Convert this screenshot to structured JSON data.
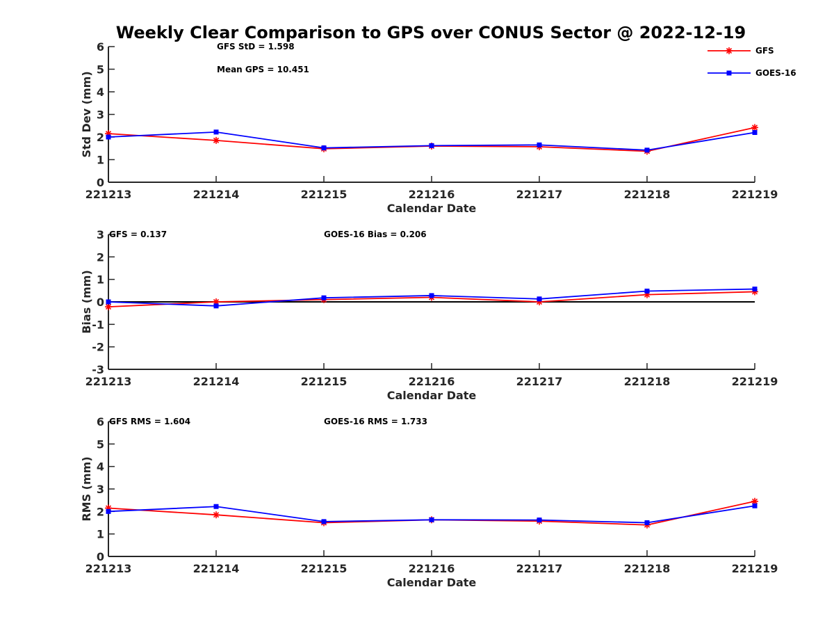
{
  "title": "Weekly Clear Comparison to GPS over CONUS Sector @ 2022-12-19",
  "legend": {
    "placement": "top-right",
    "items": [
      {
        "name": "GFS",
        "color": "#ff0000",
        "marker": "asterisk"
      },
      {
        "name": "GOES-16",
        "color": "#0000ff",
        "marker": "square"
      }
    ]
  },
  "chart_data": [
    {
      "type": "line",
      "xlabel": "Calendar Date",
      "ylabel": "Std Dev (mm)",
      "categories": [
        "221213",
        "221214",
        "221215",
        "221216",
        "221217",
        "221218",
        "221219"
      ],
      "ylim": [
        0,
        6
      ],
      "yticks": [
        0,
        1,
        2,
        3,
        4,
        5,
        6
      ],
      "zero_line": false,
      "annotations": [
        "GFS StD = 1.598",
        "Mean GPS = 10.451"
      ],
      "series": [
        {
          "name": "GFS",
          "color": "#ff0000",
          "marker": "asterisk",
          "values": [
            2.15,
            1.85,
            1.48,
            1.6,
            1.57,
            1.37,
            2.42
          ]
        },
        {
          "name": "GOES-16",
          "color": "#0000ff",
          "marker": "square",
          "values": [
            2.0,
            2.22,
            1.52,
            1.62,
            1.65,
            1.42,
            2.2
          ]
        }
      ]
    },
    {
      "type": "line",
      "xlabel": "Calendar Date",
      "ylabel": "Bias (mm)",
      "categories": [
        "221213",
        "221214",
        "221215",
        "221216",
        "221217",
        "221218",
        "221219"
      ],
      "ylim": [
        -3,
        3
      ],
      "yticks": [
        -3,
        -2,
        -1,
        0,
        1,
        2,
        3
      ],
      "zero_line": true,
      "annotations": [
        "GFS = 0.137",
        "GOES-16 Bias  = 0.206"
      ],
      "series": [
        {
          "name": "GFS",
          "color": "#ff0000",
          "marker": "asterisk",
          "values": [
            -0.22,
            0.0,
            0.1,
            0.2,
            0.0,
            0.32,
            0.45
          ]
        },
        {
          "name": "GOES-16",
          "color": "#0000ff",
          "marker": "square",
          "values": [
            0.0,
            -0.18,
            0.18,
            0.28,
            0.13,
            0.48,
            0.57
          ]
        }
      ]
    },
    {
      "type": "line",
      "xlabel": "Calendar Date",
      "ylabel": "RMS (mm)",
      "categories": [
        "221213",
        "221214",
        "221215",
        "221216",
        "221217",
        "221218",
        "221219"
      ],
      "ylim": [
        0,
        6
      ],
      "yticks": [
        0,
        1,
        2,
        3,
        4,
        5,
        6
      ],
      "zero_line": false,
      "annotations": [
        "GFS RMS = 1.604",
        "GOES-16 RMS = 1.733"
      ],
      "series": [
        {
          "name": "GFS",
          "color": "#ff0000",
          "marker": "asterisk",
          "values": [
            2.15,
            1.85,
            1.5,
            1.63,
            1.57,
            1.4,
            2.45
          ]
        },
        {
          "name": "GOES-16",
          "color": "#0000ff",
          "marker": "square",
          "values": [
            2.0,
            2.22,
            1.55,
            1.63,
            1.62,
            1.5,
            2.25
          ]
        }
      ]
    }
  ]
}
